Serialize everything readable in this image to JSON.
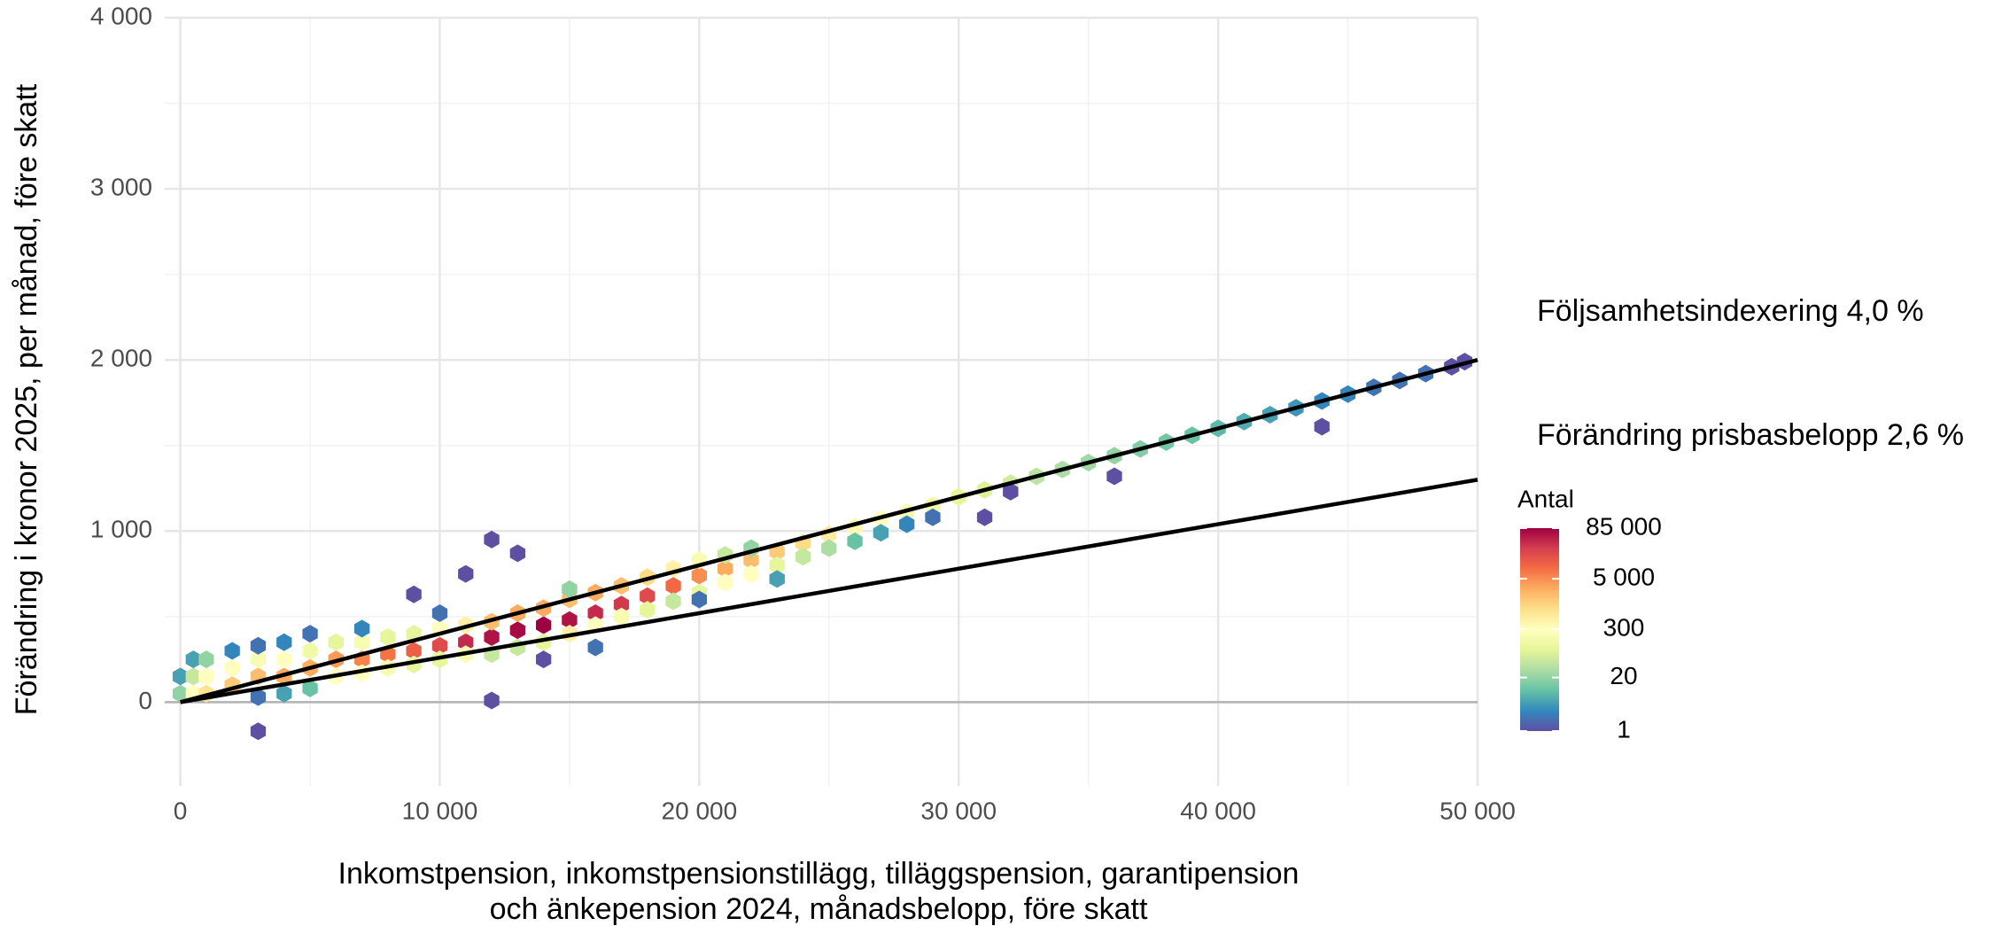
{
  "chart_data": {
    "type": "hexbin",
    "ylabel": "Förändring i kronor 2025, per månad, före skatt",
    "xlabel": [
      "Inkomstpension, inkomstpensionstillägg, tilläggspension, garantipension",
      "och änkepension 2024, månadsbelopp, före skatt"
    ],
    "xlim": [
      -600,
      50000
    ],
    "ylim": [
      -490,
      4000
    ],
    "xticks": [
      0,
      {
        "value": 10000,
        "label": "10 000"
      },
      {
        "value": 20000,
        "label": "20 000"
      },
      {
        "value": 30000,
        "label": "30 000"
      },
      {
        "value": 40000,
        "label": "40 000"
      },
      {
        "value": 50000,
        "label": "50 000"
      }
    ],
    "yticks": [
      0,
      {
        "value": 1000,
        "label": "1 000"
      },
      {
        "value": 2000,
        "label": "2 000"
      },
      {
        "value": 3000,
        "label": "3 000"
      },
      {
        "value": 4000,
        "label": "4 000"
      }
    ],
    "xminorticks": [
      5000,
      15000,
      25000,
      35000,
      45000
    ],
    "yminorticks": [
      500,
      1500,
      2500,
      3500
    ],
    "grid": true,
    "hline": 0,
    "x": [
      0,
      0,
      500,
      500,
      500,
      1000,
      1000,
      1000,
      2000,
      2000,
      2000,
      3000,
      3000,
      3000,
      3000,
      3000,
      4000,
      4000,
      4000,
      4000,
      5000,
      5000,
      5000,
      5000,
      6000,
      6000,
      6000,
      7000,
      7000,
      7000,
      7000,
      8000,
      8000,
      8000,
      9000,
      9000,
      9000,
      9000,
      10000,
      10000,
      10000,
      10000,
      11000,
      11000,
      11000,
      11000,
      12000,
      12000,
      12000,
      12000,
      12000,
      13000,
      13000,
      13000,
      13000,
      14000,
      14000,
      14000,
      14000,
      15000,
      15000,
      15000,
      15000,
      16000,
      16000,
      16000,
      16000,
      17000,
      17000,
      17000,
      18000,
      18000,
      18000,
      19000,
      19000,
      19000,
      20000,
      20000,
      20000,
      20000,
      21000,
      21000,
      21000,
      22000,
      22000,
      22000,
      23000,
      23000,
      23000,
      24000,
      24000,
      25000,
      25000,
      26000,
      26000,
      27000,
      27000,
      28000,
      28000,
      29000,
      29000,
      30000,
      31000,
      31000,
      32000,
      32000,
      33000,
      34000,
      35000,
      36000,
      36000,
      37000,
      38000,
      39000,
      40000,
      41000,
      42000,
      43000,
      44000,
      44000,
      45000,
      46000,
      47000,
      48000,
      49000,
      49500
    ],
    "y": [
      50,
      150,
      50,
      150,
      250,
      50,
      150,
      250,
      100,
      200,
      300,
      150,
      250,
      330,
      -170,
      30,
      150,
      250,
      350,
      50,
      200,
      300,
      400,
      80,
      250,
      350,
      150,
      250,
      350,
      430,
      170,
      280,
      380,
      200,
      300,
      400,
      630,
      220,
      330,
      430,
      250,
      520,
      350,
      450,
      280,
      750,
      380,
      470,
      280,
      950,
      10,
      420,
      520,
      320,
      870,
      450,
      550,
      350,
      250,
      480,
      600,
      400,
      660,
      520,
      640,
      450,
      320,
      570,
      680,
      500,
      620,
      730,
      540,
      680,
      780,
      590,
      740,
      830,
      640,
      600,
      780,
      700,
      860,
      830,
      750,
      900,
      880,
      800,
      720,
      930,
      850,
      980,
      900,
      1020,
      940,
      1070,
      990,
      1110,
      1040,
      1150,
      1080,
      1200,
      1240,
      1080,
      1280,
      1230,
      1320,
      1360,
      1400,
      1440,
      1320,
      1480,
      1520,
      1560,
      1600,
      1640,
      1680,
      1720,
      1760,
      1610,
      1800,
      1840,
      1880,
      1920,
      1960,
      1990
    ],
    "values": [
      20,
      5,
      300,
      50,
      5,
      800,
      300,
      20,
      1500,
      300,
      3,
      2000,
      200,
      2,
      1,
      2,
      3000,
      300,
      3,
      5,
      3000,
      150,
      2,
      10,
      4000,
      100,
      300,
      6000,
      200,
      3,
      300,
      8000,
      100,
      200,
      12000,
      100,
      1,
      100,
      20000,
      300,
      100,
      2,
      40000,
      500,
      200,
      1,
      60000,
      2000,
      50,
      1,
      1,
      70000,
      3000,
      50,
      1,
      85000,
      3000,
      100,
      1,
      60000,
      2000,
      500,
      20,
      40000,
      3000,
      300,
      2,
      30000,
      2000,
      200,
      20000,
      1000,
      100,
      10000,
      500,
      50,
      5000,
      200,
      100,
      2,
      3000,
      300,
      50,
      2000,
      300,
      20,
      1500,
      100,
      5,
      1000,
      50,
      600,
      30,
      400,
      10,
      300,
      5,
      200,
      3,
      150,
      2,
      100,
      80,
      1,
      60,
      1,
      40,
      30,
      25,
      20,
      1,
      15,
      12,
      10,
      8,
      6,
      5,
      4,
      3,
      1,
      3,
      2,
      2,
      2,
      1,
      1
    ],
    "lines": [
      {
        "name": "Följsamhetsindexering 4,0 %",
        "color": "#000000",
        "x": [
          0,
          50000
        ],
        "values": [
          0,
          2000
        ]
      },
      {
        "name": "Förändring prisbasbelopp 2,6 %",
        "color": "#000000",
        "x": [
          0,
          50000
        ],
        "values": [
          0,
          1300
        ]
      }
    ],
    "colorbar": {
      "title": "Antal",
      "log": true,
      "lim": [
        1,
        85000
      ],
      "ticks": [
        {
          "value": 85000,
          "label": "85 000"
        },
        {
          "value": 5000,
          "label": "5 000"
        },
        300,
        20,
        1
      ],
      "colors": [
        "#5e4fa2",
        "#3288bd",
        "#66c2a5",
        "#abdda4",
        "#e6f598",
        "#ffffbf",
        "#fee08b",
        "#fdae61",
        "#f46d43",
        "#d53e4f",
        "#9e0142"
      ]
    }
  }
}
